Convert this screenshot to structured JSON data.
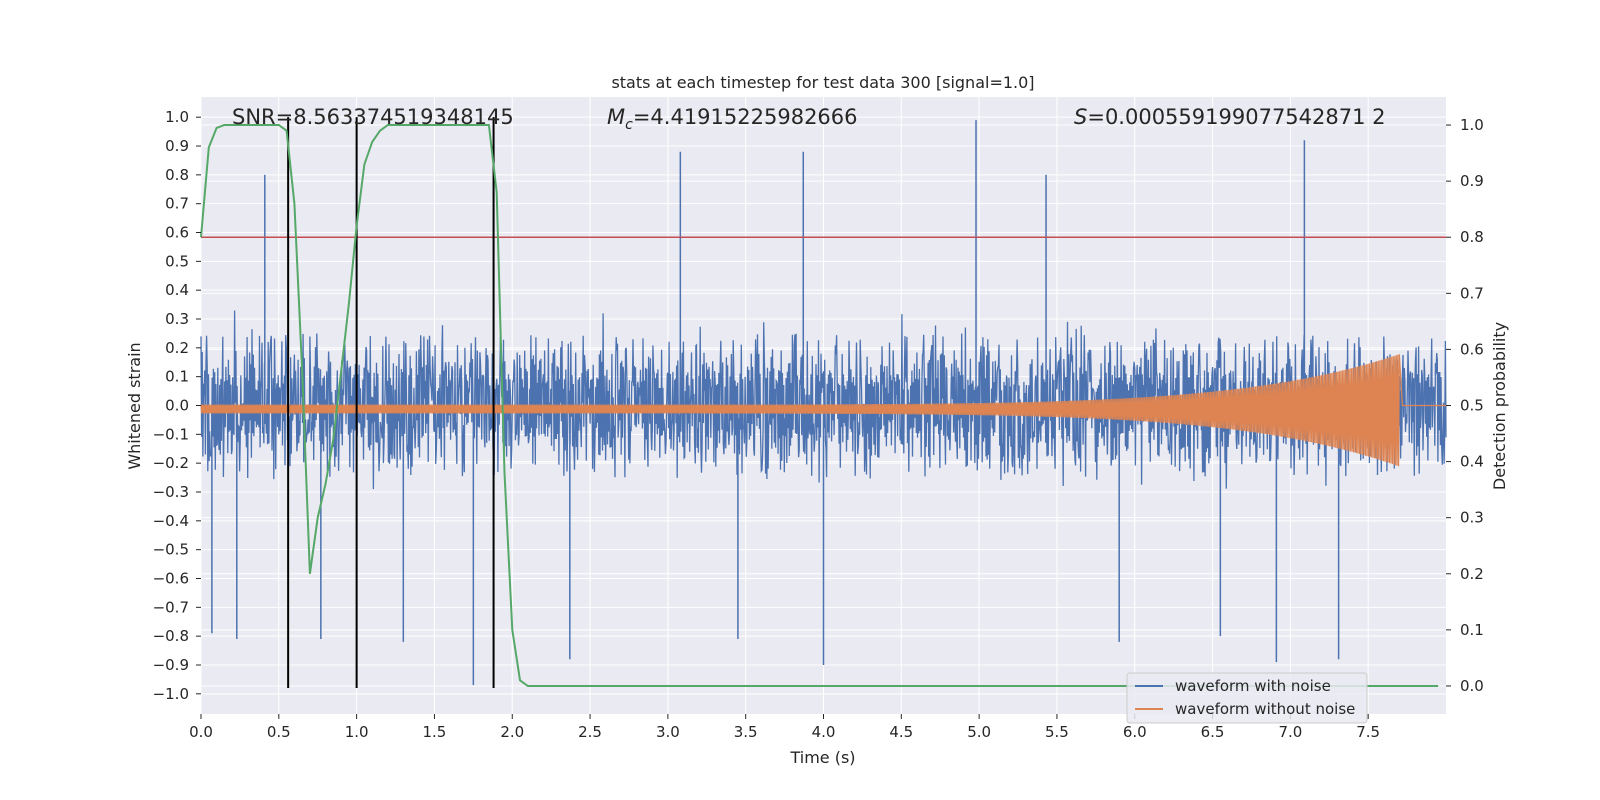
{
  "chart_data": {
    "type": "line",
    "title": "stats at each timestep for test data 300 [signal=1.0]",
    "xlabel": "Time (s)",
    "ylabel": "Whitened strain",
    "y2label": "Detection probability",
    "xlim": [
      0,
      8
    ],
    "ylim": [
      -1.07,
      1.07
    ],
    "y2lim": [
      -0.05,
      1.05
    ],
    "xticks": [
      0.0,
      0.5,
      1.0,
      1.5,
      2.0,
      2.5,
      3.0,
      3.5,
      4.0,
      4.5,
      5.0,
      5.5,
      6.0,
      6.5,
      7.0,
      7.5
    ],
    "xtick_labels": [
      "0.0",
      "0.5",
      "1.0",
      "1.5",
      "2.0",
      "2.5",
      "3.0",
      "3.5",
      "4.0",
      "4.5",
      "5.0",
      "5.5",
      "6.0",
      "6.5",
      "7.0",
      "7.5"
    ],
    "yticks": [
      1.0,
      0.9,
      0.8,
      0.7,
      0.6,
      0.5,
      0.4,
      0.3,
      0.2,
      0.1,
      0.0,
      -0.1,
      -0.2,
      -0.3,
      -0.4,
      -0.5,
      -0.6,
      -0.7,
      -0.8,
      -0.9,
      -1.0
    ],
    "ytick_labels": [
      "1.0",
      "0.9",
      "0.8",
      "0.7",
      "0.6",
      "0.5",
      "0.4",
      "0.3",
      "0.2",
      "0.1",
      "0.0",
      "−0.1",
      "−0.2",
      "−0.3",
      "−0.4",
      "−0.5",
      "−0.6",
      "−0.7",
      "−0.8",
      "−0.9",
      "−1.0"
    ],
    "y2ticks": [
      1.0,
      0.9,
      0.8,
      0.7,
      0.6,
      0.5,
      0.4,
      0.3,
      0.2,
      0.1,
      0.0
    ],
    "y2tick_labels": [
      "1.0",
      "0.9",
      "0.8",
      "0.7",
      "0.6",
      "0.5",
      "0.4",
      "0.3",
      "0.2",
      "0.1",
      "0.0"
    ],
    "threshold": {
      "value": 0.8,
      "color": "#c44e52"
    },
    "vlines": [
      0.56,
      1.0,
      1.88
    ],
    "vline_range": [
      -0.98,
      1.0
    ],
    "series": [
      {
        "name": "waveform with noise",
        "color": "#4c72b0",
        "kind": "noise",
        "x_range": [
          0,
          8
        ],
        "spikes": [
          {
            "x": 4.98,
            "y": 0.99
          },
          {
            "x": 3.08,
            "y": 0.88
          },
          {
            "x": 3.87,
            "y": 0.88
          },
          {
            "x": 7.09,
            "y": 0.92
          },
          {
            "x": 5.43,
            "y": 0.8
          },
          {
            "x": 0.41,
            "y": 0.8
          },
          {
            "x": 4.0,
            "y": -0.9
          },
          {
            "x": 6.91,
            "y": -0.89
          },
          {
            "x": 2.37,
            "y": -0.88
          },
          {
            "x": 7.31,
            "y": -0.88
          },
          {
            "x": 1.75,
            "y": -0.97
          },
          {
            "x": 0.23,
            "y": -0.81
          },
          {
            "x": 0.07,
            "y": -0.79
          },
          {
            "x": 1.3,
            "y": -0.82
          },
          {
            "x": 3.45,
            "y": -0.81
          },
          {
            "x": 6.55,
            "y": -0.8
          },
          {
            "x": 5.9,
            "y": -0.82
          },
          {
            "x": 0.77,
            "y": -0.81
          }
        ]
      },
      {
        "name": "waveform without noise",
        "color": "#dd8452",
        "kind": "chirp",
        "x_range": [
          0,
          7.7
        ],
        "amp_start": 0.015,
        "amp_peak": 0.19,
        "peak_x": 7.7,
        "offset": -0.012
      },
      {
        "name": "detection probability",
        "color": "#55a868",
        "axis": "right",
        "x": [
          0.0,
          0.05,
          0.1,
          0.15,
          0.2,
          0.3,
          0.4,
          0.5,
          0.55,
          0.6,
          0.65,
          0.7,
          0.75,
          0.8,
          0.85,
          0.9,
          0.95,
          1.0,
          1.05,
          1.1,
          1.15,
          1.2,
          1.3,
          1.4,
          1.5,
          1.6,
          1.7,
          1.85,
          1.9,
          1.95,
          2.0,
          2.05,
          2.1,
          2.5,
          3,
          4,
          5,
          6,
          7,
          7.95
        ],
        "values": [
          0.8,
          0.96,
          0.995,
          1.0,
          1.0,
          1.0,
          1.0,
          1.0,
          0.99,
          0.86,
          0.56,
          0.2,
          0.3,
          0.36,
          0.44,
          0.56,
          0.68,
          0.82,
          0.93,
          0.97,
          0.99,
          1.0,
          1.0,
          1.0,
          1.0,
          1.0,
          1.0,
          1.0,
          0.88,
          0.38,
          0.1,
          0.01,
          0.0,
          0.0,
          0.0,
          0.0,
          0.0,
          0.0,
          0.0,
          0.0
        ]
      }
    ],
    "legend": {
      "position": "lower-right",
      "items": [
        {
          "label": "waveform with noise",
          "color": "#4c72b0"
        },
        {
          "label": "waveform without noise",
          "color": "#dd8452"
        }
      ]
    },
    "annotations": {
      "snr": "SNR=8.563374519348145",
      "mc_symbol": "M",
      "mc_sub": "c",
      "mc_value": "=4.41915225982666",
      "s_symbol": "S",
      "s_value": "=0.000559199077542871 2"
    },
    "style": {
      "background": "#eaeaf2",
      "grid": "#ffffff"
    }
  }
}
